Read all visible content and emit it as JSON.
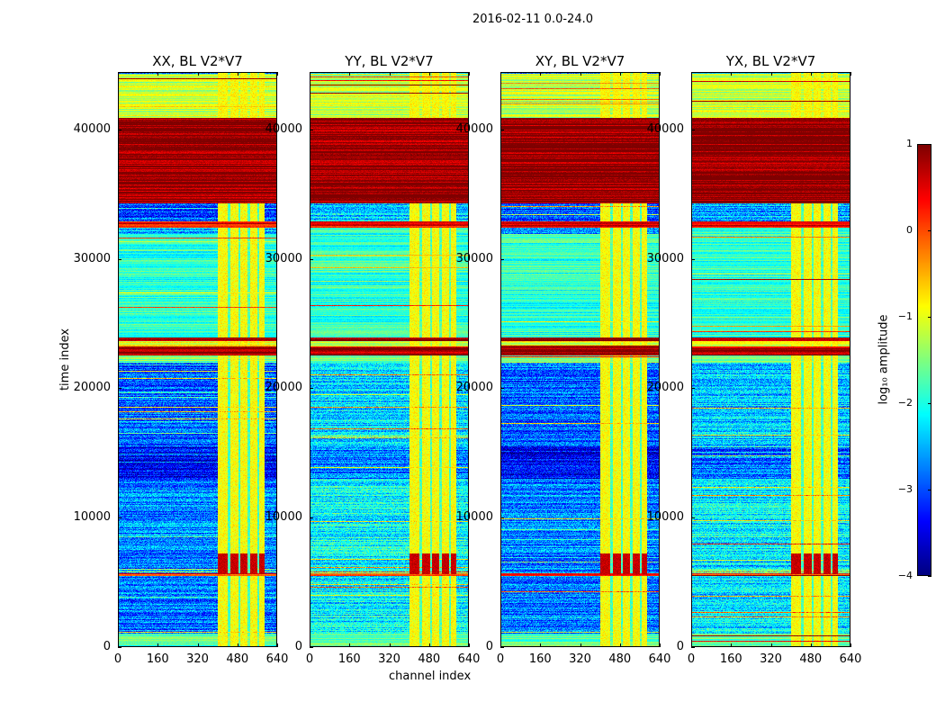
{
  "suptitle": "2016-02-11 0.0-24.0",
  "chart_data": {
    "type": "heatmap",
    "xlabel": "channel index",
    "ylabel": "time index",
    "xlim": [
      0,
      640
    ],
    "ylim": [
      0,
      44450
    ],
    "xticks": [
      "0",
      "160",
      "320",
      "480",
      "640"
    ],
    "xtick_values": [
      0,
      160,
      320,
      480,
      640
    ],
    "yticks": [
      "0",
      "10000",
      "20000",
      "30000",
      "40000"
    ],
    "ytick_values": [
      0,
      10000,
      20000,
      30000,
      40000
    ],
    "panels": [
      {
        "title": "XX, BL V2*V7",
        "quiet_offset": 0
      },
      {
        "title": "YY, BL V2*V7",
        "quiet_offset": 0.6
      },
      {
        "title": "XY, BL V2*V7",
        "quiet_offset": 0
      },
      {
        "title": "YX, BL V2*V7",
        "quiet_offset": 0.5
      }
    ],
    "time_bands": [
      [
        0,
        1000,
        -1.7
      ],
      [
        1000,
        5500,
        -2.8
      ],
      [
        5500,
        5700,
        0.2
      ],
      [
        5700,
        7000,
        -2.8
      ],
      [
        7000,
        13000,
        -2.7
      ],
      [
        13000,
        15500,
        -3.4
      ],
      [
        15500,
        22000,
        -2.9
      ],
      [
        22000,
        22600,
        -1.5
      ],
      [
        22600,
        23300,
        0.8
      ],
      [
        23300,
        23700,
        -1.0
      ],
      [
        23700,
        24000,
        0.9
      ],
      [
        24000,
        32000,
        -1.9
      ],
      [
        32500,
        33000,
        0.4
      ],
      [
        33000,
        34400,
        -3.0
      ],
      [
        34400,
        41000,
        0.9
      ],
      [
        41000,
        44450,
        -1.2
      ]
    ],
    "rfi_stripes": [
      [
        400,
        440
      ],
      [
        452,
        484
      ],
      [
        492,
        522
      ],
      [
        532,
        560
      ],
      [
        570,
        590
      ]
    ],
    "rfi_level": -0.9,
    "rfi_burst": {
      "time": [
        5600,
        7200
      ],
      "level": 0.5
    },
    "colorbar": {
      "label": "log₁₀ amplitude",
      "range": [
        -4,
        1
      ],
      "ticks": [
        "1",
        "0",
        "−1",
        "−2",
        "−3",
        "−4"
      ],
      "tick_values": [
        1,
        0,
        -1,
        -2,
        -3,
        -4
      ],
      "colormap": "jet"
    }
  }
}
